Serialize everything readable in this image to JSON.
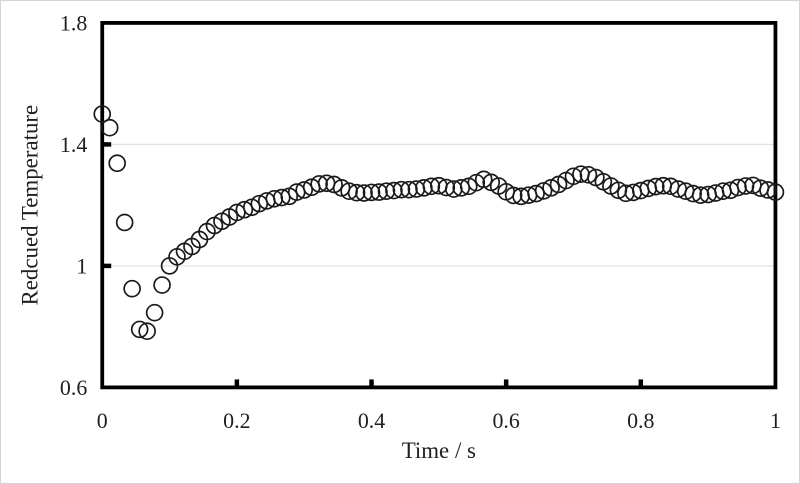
{
  "chart_data": {
    "type": "scatter",
    "title": "",
    "xlabel": "Time / s",
    "ylabel": "Redcued Temperature",
    "xlim": [
      0,
      1
    ],
    "ylim": [
      0.6,
      1.8
    ],
    "x_ticks": {
      "values": [
        0,
        0.2,
        0.4,
        0.6,
        0.8,
        1
      ],
      "labels": [
        "0",
        "0.2",
        "0.4",
        "0.6",
        "0.8",
        "1"
      ]
    },
    "y_ticks": {
      "values": [
        0.6,
        1,
        1.4,
        1.8
      ],
      "labels": [
        "0.6",
        "1",
        "1.4",
        "1.8"
      ]
    },
    "gridlines_y": [
      1,
      1.4
    ],
    "grid": "horizontal-only",
    "legend": "none",
    "marker": {
      "shape": "open-circle",
      "radius_px": 8
    },
    "series": [
      {
        "name": "reduced temperature",
        "points": [
          [
            0.0,
            1.5
          ],
          [
            0.0111,
            1.455
          ],
          [
            0.0222,
            1.338
          ],
          [
            0.0333,
            1.143
          ],
          [
            0.0444,
            0.925
          ],
          [
            0.0556,
            0.791
          ],
          [
            0.0667,
            0.785
          ],
          [
            0.0778,
            0.846
          ],
          [
            0.0889,
            0.937
          ],
          [
            0.1,
            1.0
          ],
          [
            0.1111,
            1.03
          ],
          [
            0.1222,
            1.048
          ],
          [
            0.1333,
            1.064
          ],
          [
            0.1444,
            1.087
          ],
          [
            0.1556,
            1.113
          ],
          [
            0.1667,
            1.133
          ],
          [
            0.1778,
            1.147
          ],
          [
            0.1889,
            1.161
          ],
          [
            0.2,
            1.176
          ],
          [
            0.2111,
            1.185
          ],
          [
            0.2222,
            1.193
          ],
          [
            0.2333,
            1.205
          ],
          [
            0.2444,
            1.214
          ],
          [
            0.2556,
            1.221
          ],
          [
            0.2667,
            1.225
          ],
          [
            0.2778,
            1.229
          ],
          [
            0.2889,
            1.243
          ],
          [
            0.3,
            1.25
          ],
          [
            0.3111,
            1.259
          ],
          [
            0.3222,
            1.27
          ],
          [
            0.3333,
            1.272
          ],
          [
            0.3444,
            1.268
          ],
          [
            0.3556,
            1.257
          ],
          [
            0.3667,
            1.246
          ],
          [
            0.3778,
            1.241
          ],
          [
            0.3889,
            1.24
          ],
          [
            0.4,
            1.242
          ],
          [
            0.4111,
            1.243
          ],
          [
            0.4222,
            1.246
          ],
          [
            0.4333,
            1.248
          ],
          [
            0.4444,
            1.251
          ],
          [
            0.4556,
            1.251
          ],
          [
            0.4667,
            1.253
          ],
          [
            0.4778,
            1.257
          ],
          [
            0.4889,
            1.262
          ],
          [
            0.5,
            1.264
          ],
          [
            0.5111,
            1.258
          ],
          [
            0.5222,
            1.253
          ],
          [
            0.5333,
            1.257
          ],
          [
            0.5444,
            1.262
          ],
          [
            0.5556,
            1.274
          ],
          [
            0.5667,
            1.285
          ],
          [
            0.5778,
            1.275
          ],
          [
            0.5889,
            1.263
          ],
          [
            0.6,
            1.244
          ],
          [
            0.6111,
            1.232
          ],
          [
            0.6222,
            1.229
          ],
          [
            0.6333,
            1.233
          ],
          [
            0.6444,
            1.238
          ],
          [
            0.6556,
            1.247
          ],
          [
            0.6667,
            1.257
          ],
          [
            0.6778,
            1.268
          ],
          [
            0.6889,
            1.281
          ],
          [
            0.7,
            1.295
          ],
          [
            0.7111,
            1.302
          ],
          [
            0.7222,
            1.3
          ],
          [
            0.7333,
            1.291
          ],
          [
            0.7444,
            1.277
          ],
          [
            0.7556,
            1.263
          ],
          [
            0.7667,
            1.249
          ],
          [
            0.7778,
            1.239
          ],
          [
            0.7889,
            1.242
          ],
          [
            0.8,
            1.248
          ],
          [
            0.8111,
            1.255
          ],
          [
            0.8222,
            1.261
          ],
          [
            0.8333,
            1.264
          ],
          [
            0.8444,
            1.262
          ],
          [
            0.8556,
            1.253
          ],
          [
            0.8667,
            1.246
          ],
          [
            0.8778,
            1.238
          ],
          [
            0.8889,
            1.233
          ],
          [
            0.9,
            1.235
          ],
          [
            0.9111,
            1.24
          ],
          [
            0.9222,
            1.246
          ],
          [
            0.9333,
            1.249
          ],
          [
            0.9444,
            1.258
          ],
          [
            0.9556,
            1.263
          ],
          [
            0.9667,
            1.265
          ],
          [
            0.9778,
            1.256
          ],
          [
            0.9889,
            1.25
          ],
          [
            1.0,
            1.243
          ]
        ]
      }
    ]
  },
  "style": {
    "background": "#ffffff",
    "frame_color": "#000000",
    "grid_color": "#e3e3e3",
    "tick_color": "#000000",
    "text_color": "#1f1f1f",
    "marker_color": "#1a1a1a",
    "outer_border": "#d4d4d4"
  }
}
